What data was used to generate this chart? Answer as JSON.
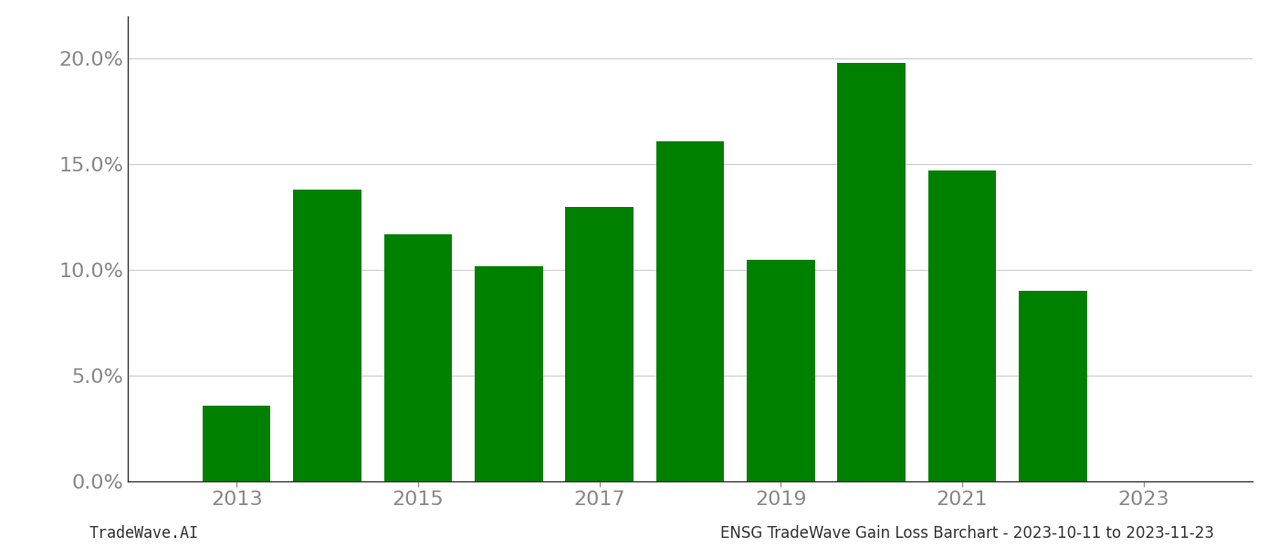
{
  "years": [
    2013,
    2014,
    2015,
    2016,
    2017,
    2018,
    2019,
    2020,
    2021,
    2022
  ],
  "values": [
    0.036,
    0.138,
    0.117,
    0.102,
    0.13,
    0.161,
    0.105,
    0.198,
    0.147,
    0.09
  ],
  "bar_color": "#008000",
  "background_color": "#ffffff",
  "grid_color": "#cccccc",
  "tick_label_color": "#888888",
  "footer_left": "TradeWave.AI",
  "footer_right": "ENSG TradeWave Gain Loss Barchart - 2023-10-11 to 2023-11-23",
  "ylim": [
    0,
    0.22
  ],
  "yticks": [
    0.0,
    0.05,
    0.1,
    0.15,
    0.2
  ],
  "ytick_labels": [
    "0.0%",
    "5.0%",
    "10.0%",
    "15.0%",
    "20.0%"
  ],
  "xtick_labels": [
    "2013",
    "2015",
    "2017",
    "2019",
    "2021",
    "2023"
  ],
  "xtick_positions": [
    2013,
    2015,
    2017,
    2019,
    2021,
    2023
  ],
  "xlim": [
    2011.8,
    2024.2
  ],
  "bar_width": 0.75,
  "ytick_fontsize": 16,
  "xtick_fontsize": 16,
  "footer_fontsize": 12
}
